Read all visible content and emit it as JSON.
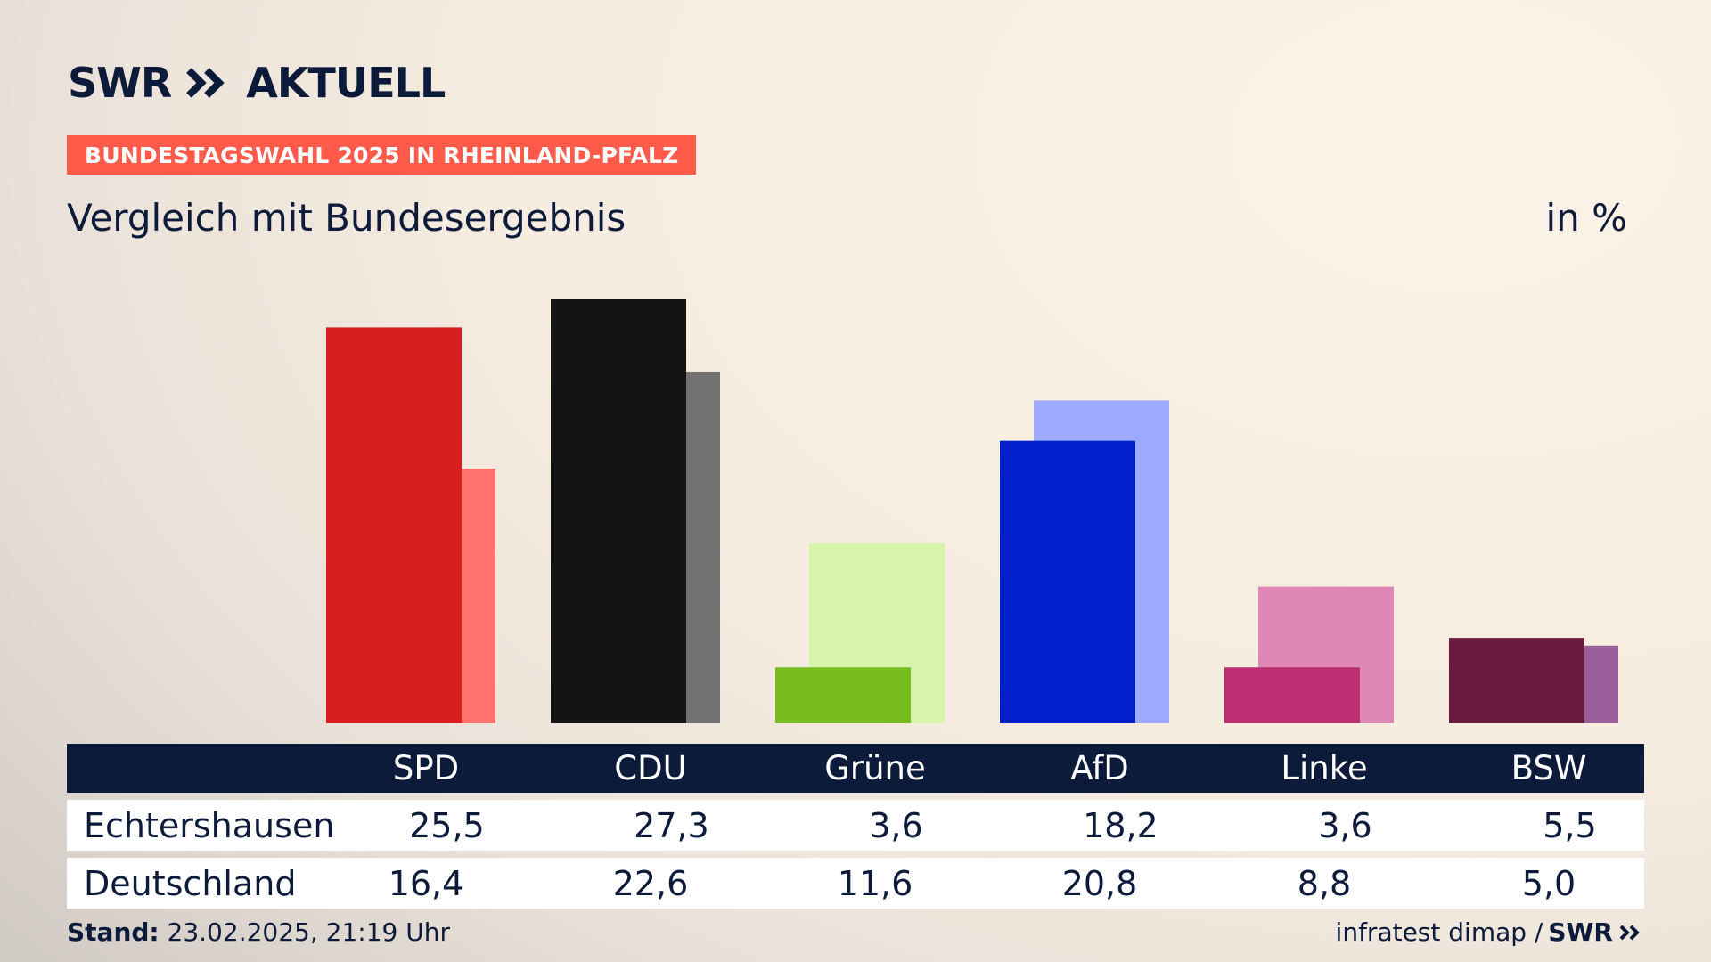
{
  "header": {
    "brand": "SWR",
    "brand_sub": "AKTUELL",
    "badge": "BUNDESTAGSWAHL 2025 IN RHEINLAND-PFALZ",
    "subtitle": "Vergleich mit Bundesergebnis",
    "unit": "in %"
  },
  "table": {
    "rows": [
      {
        "label": "Echtershausen"
      },
      {
        "label": "Deutschland"
      }
    ]
  },
  "footer": {
    "stand_label": "Stand:",
    "stand_value": "23.02.2025, 21:19 Uhr",
    "source": "infratest dimap /",
    "source_brand": "SWR"
  },
  "chart_data": {
    "type": "bar",
    "categories": [
      "SPD",
      "CDU",
      "Grüne",
      "AfD",
      "Linke",
      "BSW"
    ],
    "series": [
      {
        "name": "Echtershausen",
        "values": [
          25.5,
          27.3,
          3.6,
          18.2,
          3.6,
          5.5
        ]
      },
      {
        "name": "Deutschland",
        "values": [
          16.4,
          22.6,
          11.6,
          20.8,
          8.8,
          5.0
        ]
      }
    ],
    "colors": {
      "primary": [
        "#d81f1f",
        "#141414",
        "#78bd1f",
        "#0020cc",
        "#bd2f72",
        "#6a1a3d"
      ],
      "secondary": [
        "#ff736c",
        "#727272",
        "#d6f5aa",
        "#9eaaff",
        "#df88b6",
        "#9b5e9c"
      ]
    },
    "ylim": [
      0,
      27.3
    ]
  }
}
